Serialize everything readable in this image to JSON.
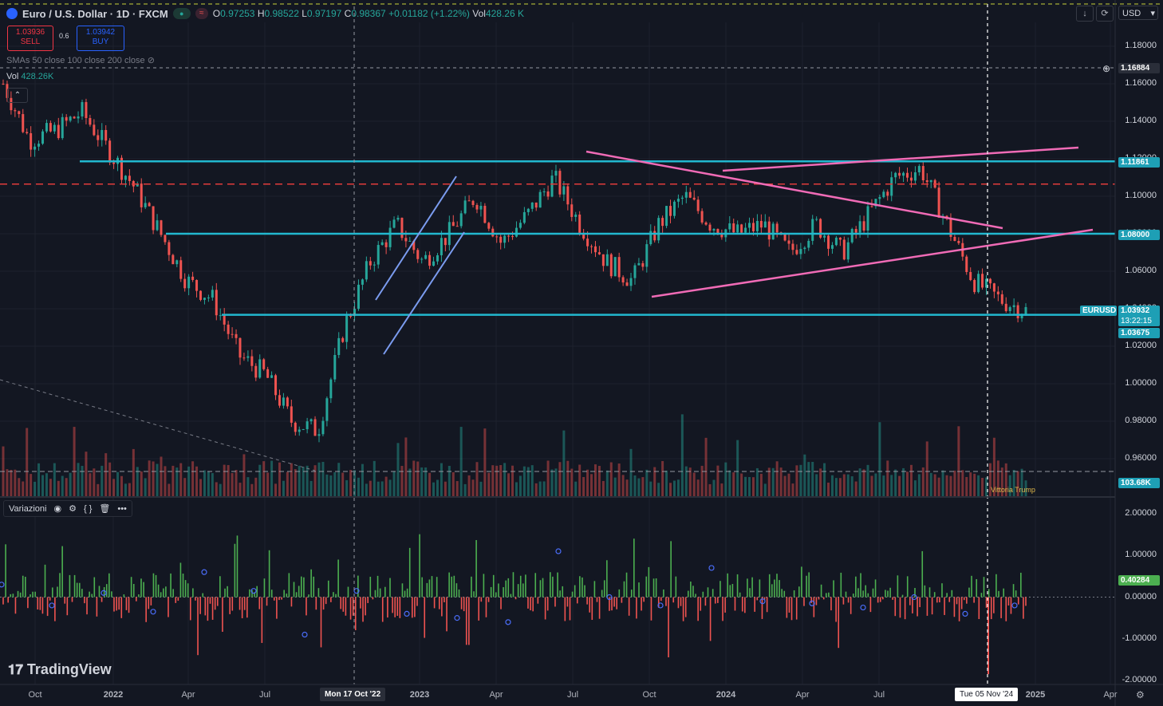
{
  "header": {
    "symbol": "Euro / U.S. Dollar · 1D · FXCM",
    "open_label": "O",
    "open": "0.97253",
    "high_label": "H",
    "high": "0.98522",
    "low_label": "L",
    "low": "0.97197",
    "close_label": "C",
    "close": "0.98367",
    "change": "+0.01182 (+1.22%)",
    "vol_label": "Vol",
    "vol": "428.26 K",
    "currency": "USD"
  },
  "trade": {
    "sell_price": "1.03936",
    "sell_label": "SELL",
    "buy_price": "1.03942",
    "buy_label": "BUY",
    "spread": "0.6"
  },
  "indicators": {
    "sma": "SMAs 50 close 100 close 200 close",
    "vol_label": "Vol",
    "vol_value": "428.26K"
  },
  "price_axis": {
    "labels": [
      "1.18000",
      "1.16000",
      "1.14000",
      "1.12000",
      "1.10000",
      "1.08000",
      "1.06000",
      "1.04000",
      "1.02000",
      "1.00000",
      "0.98000",
      "0.96000"
    ],
    "crosshair_price": "1.16884",
    "tags": {
      "level1": "1.11861",
      "level2": "1.08000",
      "symbol": "EURUSD",
      "last": "1.03932",
      "countdown": "13:22:15",
      "level3": "1.03675",
      "volume": "103.68K"
    }
  },
  "lower_panel": {
    "name": "Variazioni",
    "axis": [
      "2.00000",
      "1.00000",
      "0.00000",
      "-1.00000",
      "-2.00000"
    ],
    "value": "0.40284"
  },
  "time_axis": {
    "labels": [
      "Oct",
      "2022",
      "Apr",
      "Jul",
      "2023",
      "Apr",
      "Jul",
      "Oct",
      "2024",
      "Apr",
      "Jul",
      "2025",
      "Apr"
    ],
    "crosshair_left": "Mon 17 Oct '22",
    "crosshair_right": "Tue 05 Nov '24"
  },
  "annotation": "Vittoria Trump",
  "brand": "TradingView",
  "colors": {
    "background": "#131722",
    "up": "#26a69a",
    "down": "#ef5350",
    "cyan_levels": "#22b8cf",
    "pink_lines": "#f06bb6",
    "blue_channel": "#7b9cf0",
    "red_dash": "#e03b3b",
    "variations_up": "#4caf50",
    "variations_down": "#ef5350"
  },
  "chart_data": {
    "type": "line",
    "series": [
      {
        "x": "2021-10",
        "y": 1.16
      },
      {
        "x": "2021-11",
        "y": 1.13
      },
      {
        "x": "2021-12",
        "y": 1.135
      },
      {
        "x": "2022-01",
        "y": 1.145
      },
      {
        "x": "2022-02",
        "y": 1.125
      },
      {
        "x": "2022-03",
        "y": 1.105
      },
      {
        "x": "2022-04",
        "y": 1.08
      },
      {
        "x": "2022-05",
        "y": 1.055
      },
      {
        "x": "2022-06",
        "y": 1.045
      },
      {
        "x": "2022-07",
        "y": 1.015
      },
      {
        "x": "2022-08",
        "y": 1.005
      },
      {
        "x": "2022-09",
        "y": 0.98
      },
      {
        "x": "2022-10",
        "y": 0.975
      },
      {
        "x": "2022-11",
        "y": 1.03
      },
      {
        "x": "2022-12",
        "y": 1.065
      },
      {
        "x": "2023-01",
        "y": 1.085
      },
      {
        "x": "2023-02",
        "y": 1.065
      },
      {
        "x": "2023-03",
        "y": 1.08
      },
      {
        "x": "2023-04",
        "y": 1.1
      },
      {
        "x": "2023-05",
        "y": 1.075
      },
      {
        "x": "2023-06",
        "y": 1.09
      },
      {
        "x": "2023-07",
        "y": 1.11
      },
      {
        "x": "2023-08",
        "y": 1.085
      },
      {
        "x": "2023-09",
        "y": 1.065
      },
      {
        "x": "2023-10",
        "y": 1.055
      },
      {
        "x": "2023-11",
        "y": 1.085
      },
      {
        "x": "2023-12",
        "y": 1.1
      },
      {
        "x": "2024-01",
        "y": 1.085
      },
      {
        "x": "2024-02",
        "y": 1.08
      },
      {
        "x": "2024-03",
        "y": 1.085
      },
      {
        "x": "2024-04",
        "y": 1.07
      },
      {
        "x": "2024-05",
        "y": 1.085
      },
      {
        "x": "2024-06",
        "y": 1.07
      },
      {
        "x": "2024-07",
        "y": 1.09
      },
      {
        "x": "2024-08",
        "y": 1.11
      },
      {
        "x": "2024-09",
        "y": 1.115
      },
      {
        "x": "2024-10",
        "y": 1.085
      },
      {
        "x": "2024-11",
        "y": 1.055
      },
      {
        "x": "2024-12",
        "y": 1.045
      },
      {
        "x": "2025-01",
        "y": 1.039
      }
    ],
    "ylim": [
      0.95,
      1.19
    ],
    "levels": [
      1.11861,
      1.08,
      1.03675
    ],
    "red_dashed_level": 1.1065
  }
}
